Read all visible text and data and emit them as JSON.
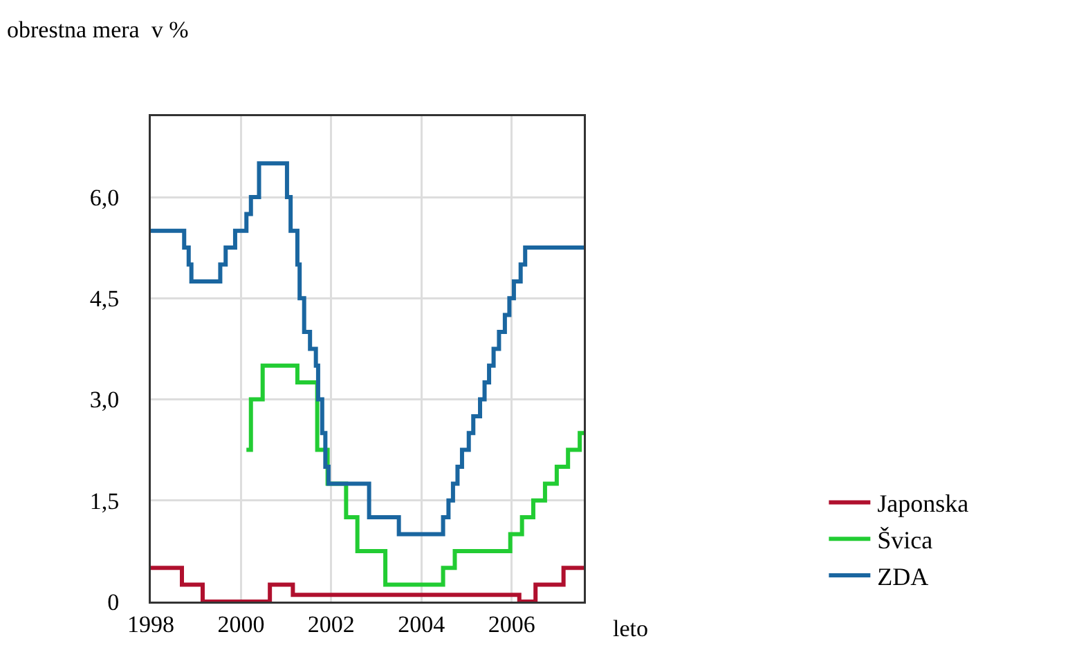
{
  "chart_data": {
    "type": "step",
    "xlabel": "leto",
    "ylabel": "obrestna mera  v %",
    "xlim": [
      1998,
      2007.6
    ],
    "xticks": [
      1998,
      2000,
      2002,
      2004,
      2006
    ],
    "ylim": [
      0,
      7.2
    ],
    "yticks": [
      0,
      {
        "value": 1.5,
        "label": "1,5"
      },
      {
        "value": 3,
        "label": "3,0"
      },
      {
        "value": 4.5,
        "label": "4,5"
      },
      {
        "value": 6,
        "label": "6,0"
      }
    ],
    "grid": true,
    "legend": "bottom right",
    "marker": "none",
    "line_style": "solid",
    "series": [
      {
        "name": "Japonska",
        "color": "#b0102e",
        "x": [
          1998,
          1998.69,
          1999.15,
          2000.64,
          2001.15,
          2006.17,
          2006.53,
          2007.15,
          2007.6
        ],
        "values": [
          0.5,
          0.25,
          0,
          0.25,
          0.1,
          0,
          0.25,
          0.5,
          0.5
        ]
      },
      {
        "name": "Švica",
        "color": "#22cc33",
        "x": [
          2000.12,
          2000.22,
          2000.48,
          2001.25,
          2001.69,
          2001.92,
          2002.33,
          2002.58,
          2003.2,
          2004.48,
          2004.74,
          2005.97,
          2006.23,
          2006.48,
          2006.74,
          2007.0,
          2007.25,
          2007.51,
          2007.6
        ],
        "values": [
          2.25,
          3,
          3.5,
          3.25,
          2.25,
          1.75,
          1.25,
          0.75,
          0.25,
          0.5,
          0.75,
          1,
          1.25,
          1.5,
          1.75,
          2,
          2.25,
          2.5,
          2.5
        ]
      },
      {
        "name": "ZDA",
        "color": "#1a66a0",
        "x": [
          1998,
          1998.74,
          1998.84,
          1998.9,
          1999.54,
          1999.66,
          1999.87,
          2000.12,
          2000.22,
          2000.4,
          2001.02,
          2001.1,
          2001.25,
          2001.3,
          2001.4,
          2001.53,
          2001.66,
          2001.71,
          2001.8,
          2001.87,
          2001.94,
          2002.84,
          2003.5,
          2004.48,
          2004.6,
          2004.7,
          2004.8,
          2004.9,
          2005.05,
          2005.15,
          2005.3,
          2005.4,
          2005.5,
          2005.6,
          2005.72,
          2005.85,
          2005.95,
          2006.05,
          2006.2,
          2006.3,
          2006.45,
          2007.6
        ],
        "values": [
          5.5,
          5.25,
          5,
          4.75,
          5,
          5.25,
          5.5,
          5.75,
          6,
          6.5,
          6,
          5.5,
          5,
          4.5,
          4,
          3.75,
          3.5,
          3,
          2.5,
          2,
          1.75,
          1.25,
          1,
          1.25,
          1.5,
          1.75,
          2,
          2.25,
          2.5,
          2.75,
          3,
          3.25,
          3.5,
          3.75,
          4,
          4.25,
          4.5,
          4.75,
          5,
          5.25,
          5.25,
          5.25
        ]
      }
    ]
  }
}
